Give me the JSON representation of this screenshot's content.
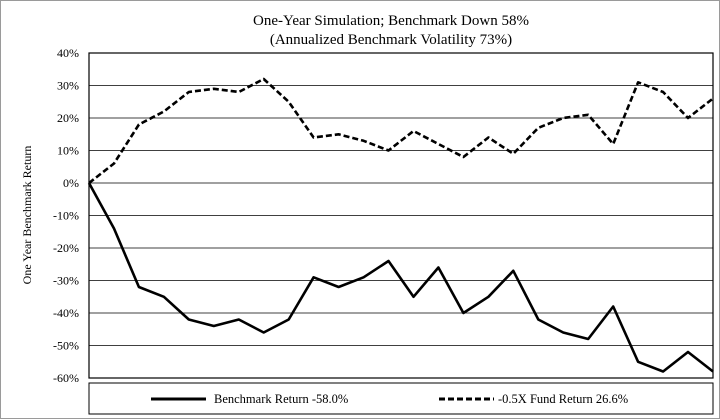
{
  "chart_data": {
    "type": "line",
    "title": [
      "One-Year Simulation; Benchmark Down 58%",
      "(Annualized Benchmark Volatility 73%)"
    ],
    "xlabel": "",
    "ylabel": "One Year Benchmark Return",
    "ylim": [
      -0.6,
      0.4
    ],
    "yticks": [
      0.4,
      0.3,
      0.2,
      0.1,
      0.0,
      -0.1,
      -0.2,
      -0.3,
      -0.4,
      -0.5,
      -0.6
    ],
    "ytick_labels": [
      "40%",
      "30%",
      "20%",
      "10%",
      "0%",
      "-10%",
      "-20%",
      "-30%",
      "-40%",
      "-50%",
      "-60%"
    ],
    "grid": "horizontal",
    "legend_placement": "bottom",
    "x": [
      0,
      10,
      20,
      30,
      40,
      50,
      60,
      70,
      80,
      90,
      100,
      110,
      120,
      130,
      140,
      150,
      160,
      170,
      180,
      190,
      200,
      210,
      220,
      230,
      240,
      250
    ],
    "series": [
      {
        "name": "Benchmark Return -58.0%",
        "style": "solid",
        "values": [
          0.0,
          -0.14,
          -0.32,
          -0.35,
          -0.42,
          -0.44,
          -0.42,
          -0.46,
          -0.42,
          -0.29,
          -0.32,
          -0.29,
          -0.24,
          -0.35,
          -0.26,
          -0.4,
          -0.35,
          -0.27,
          -0.42,
          -0.46,
          -0.48,
          -0.38,
          -0.55,
          -0.58,
          -0.52,
          -0.58
        ]
      },
      {
        "name": "-0.5X Fund Return 26.6%",
        "style": "dashed",
        "values": [
          0.0,
          0.06,
          0.18,
          0.22,
          0.28,
          0.29,
          0.28,
          0.32,
          0.25,
          0.14,
          0.15,
          0.13,
          0.1,
          0.16,
          0.12,
          0.08,
          0.14,
          0.09,
          0.17,
          0.2,
          0.21,
          0.12,
          0.31,
          0.28,
          0.2,
          0.26
        ]
      }
    ],
    "colors": {
      "benchmark": "#000000",
      "fund": "#000000",
      "grid": "#000000",
      "frame": "#000000"
    }
  }
}
